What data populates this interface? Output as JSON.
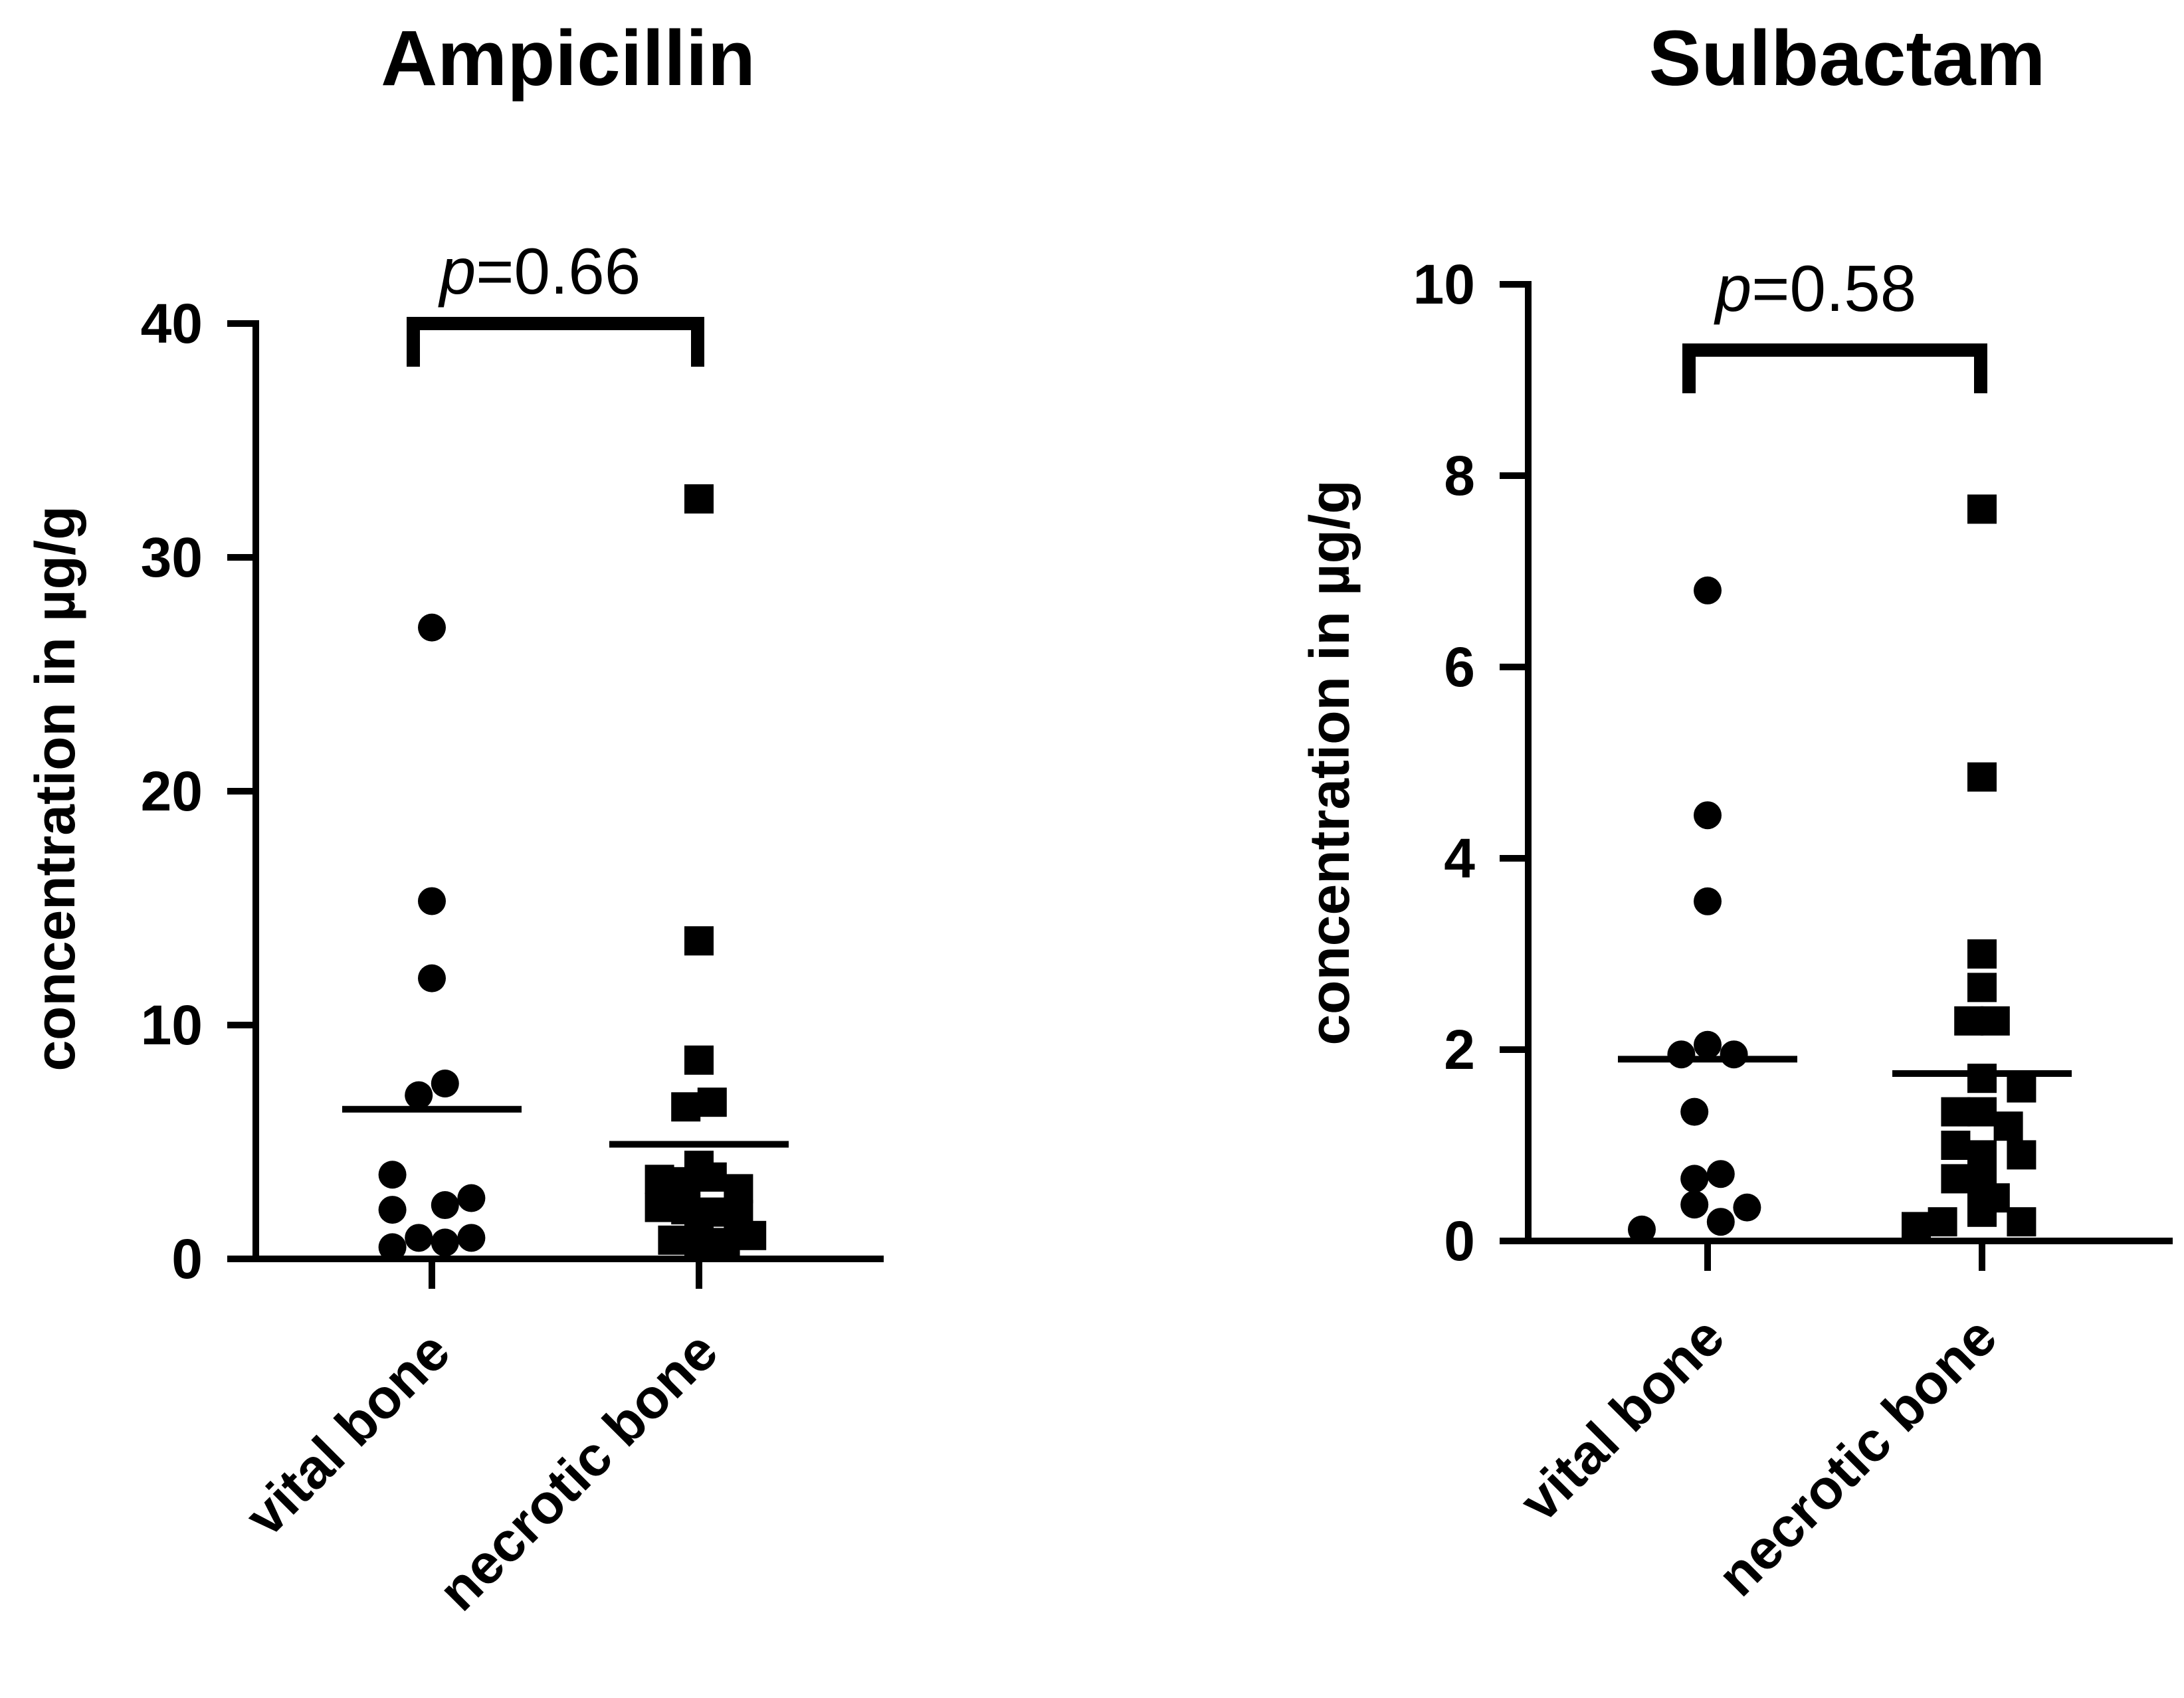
{
  "chart_data": [
    {
      "type": "scatter",
      "title": "Ampicillin",
      "ylabel": "concentration in µg/g",
      "xlabel": "",
      "ylim": [
        0,
        40
      ],
      "yticks": [
        0,
        10,
        20,
        30,
        40
      ],
      "ytick_labels": [
        "0",
        "10",
        "20",
        "30",
        "40"
      ],
      "categories": [
        "vital bone",
        "necrotic bone"
      ],
      "annotation": {
        "prefix": "p",
        "text": "=0.66"
      },
      "series": [
        {
          "name": "vital bone",
          "marker": "circle",
          "mean": 6.4,
          "points": [
            {
              "dx": 0.0,
              "y": 27.0
            },
            {
              "dx": 0.0,
              "y": 15.3
            },
            {
              "dx": 0.0,
              "y": 12.0
            },
            {
              "dx": -0.09,
              "y": 7.0
            },
            {
              "dx": 0.09,
              "y": 7.5
            },
            {
              "dx": -0.27,
              "y": 3.6
            },
            {
              "dx": -0.27,
              "y": 2.1
            },
            {
              "dx": 0.09,
              "y": 2.3
            },
            {
              "dx": 0.27,
              "y": 2.6
            },
            {
              "dx": -0.27,
              "y": 0.5
            },
            {
              "dx": -0.09,
              "y": 0.9
            },
            {
              "dx": 0.09,
              "y": 0.7
            },
            {
              "dx": 0.27,
              "y": 0.9
            }
          ]
        },
        {
          "name": "necrotic bone",
          "marker": "square",
          "mean": 4.9,
          "points": [
            {
              "dx": 0.0,
              "y": 32.5
            },
            {
              "dx": 0.0,
              "y": 13.6
            },
            {
              "dx": 0.0,
              "y": 8.5
            },
            {
              "dx": -0.09,
              "y": 6.5
            },
            {
              "dx": 0.09,
              "y": 6.7
            },
            {
              "dx": 0.0,
              "y": 4.0
            },
            {
              "dx": -0.27,
              "y": 3.4
            },
            {
              "dx": -0.09,
              "y": 3.3
            },
            {
              "dx": 0.09,
              "y": 3.5
            },
            {
              "dx": 0.27,
              "y": 3.0
            },
            {
              "dx": -0.27,
              "y": 2.2
            },
            {
              "dx": -0.09,
              "y": 2.1
            },
            {
              "dx": 0.09,
              "y": 2.0
            },
            {
              "dx": 0.27,
              "y": 1.9
            },
            {
              "dx": 0.0,
              "y": 1.6
            },
            {
              "dx": -0.18,
              "y": 0.8
            },
            {
              "dx": 0.0,
              "y": 0.6
            },
            {
              "dx": 0.18,
              "y": 0.7
            },
            {
              "dx": 0.36,
              "y": 1.0
            }
          ]
        }
      ]
    },
    {
      "type": "scatter",
      "title": "Sulbactam",
      "ylabel": "concentration in µg/g",
      "xlabel": "",
      "ylim": [
        0,
        10
      ],
      "yticks": [
        0,
        2,
        4,
        6,
        8,
        10
      ],
      "ytick_labels": [
        "0",
        "2",
        "4",
        "6",
        "8",
        "10"
      ],
      "categories": [
        "vital bone",
        "necrotic bone"
      ],
      "annotation": {
        "prefix": "p",
        "text": "=0.58"
      },
      "series": [
        {
          "name": "vital bone",
          "marker": "circle",
          "mean": 1.9,
          "points": [
            {
              "dx": 0.0,
              "y": 6.8
            },
            {
              "dx": 0.0,
              "y": 4.45
            },
            {
              "dx": 0.0,
              "y": 3.55
            },
            {
              "dx": -0.18,
              "y": 1.95
            },
            {
              "dx": 0.0,
              "y": 2.05
            },
            {
              "dx": 0.18,
              "y": 1.95
            },
            {
              "dx": -0.09,
              "y": 1.35
            },
            {
              "dx": -0.09,
              "y": 0.65
            },
            {
              "dx": 0.09,
              "y": 0.7
            },
            {
              "dx": -0.09,
              "y": 0.38
            },
            {
              "dx": 0.27,
              "y": 0.35
            },
            {
              "dx": -0.45,
              "y": 0.12
            },
            {
              "dx": 0.09,
              "y": 0.2
            }
          ]
        },
        {
          "name": "necrotic bone",
          "marker": "square",
          "mean": 1.75,
          "points": [
            {
              "dx": 0.0,
              "y": 7.65
            },
            {
              "dx": 0.0,
              "y": 4.85
            },
            {
              "dx": 0.0,
              "y": 3.0
            },
            {
              "dx": 0.0,
              "y": 2.65
            },
            {
              "dx": -0.09,
              "y": 2.3
            },
            {
              "dx": 0.09,
              "y": 2.3
            },
            {
              "dx": 0.0,
              "y": 1.7
            },
            {
              "dx": 0.27,
              "y": 1.6
            },
            {
              "dx": -0.18,
              "y": 1.35
            },
            {
              "dx": 0.0,
              "y": 1.35
            },
            {
              "dx": 0.18,
              "y": 1.2
            },
            {
              "dx": -0.18,
              "y": 1.0
            },
            {
              "dx": 0.0,
              "y": 0.9
            },
            {
              "dx": 0.27,
              "y": 0.9
            },
            {
              "dx": -0.18,
              "y": 0.65
            },
            {
              "dx": 0.0,
              "y": 0.6
            },
            {
              "dx": 0.09,
              "y": 0.45
            },
            {
              "dx": -0.27,
              "y": 0.2
            },
            {
              "dx": 0.0,
              "y": 0.3
            },
            {
              "dx": 0.27,
              "y": 0.2
            },
            {
              "dx": -0.45,
              "y": 0.15
            }
          ]
        }
      ]
    }
  ]
}
